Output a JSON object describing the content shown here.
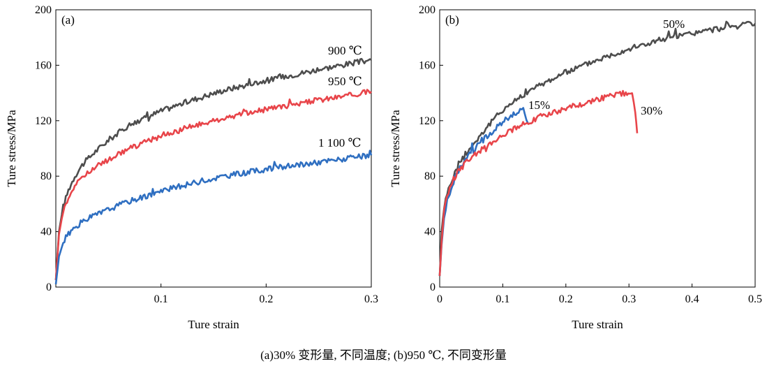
{
  "caption": "(a)30% 变形量, 不同温度; (b)950 ℃, 不同变形量",
  "chart_data": [
    {
      "panel_label": "(a)",
      "type": "line",
      "xlabel": "Ture strain",
      "ylabel": "Ture stress/MPa",
      "xlim": [
        0,
        0.3
      ],
      "ylim": [
        0,
        200
      ],
      "xticks": [
        0.1,
        0.2,
        0.3
      ],
      "xtick_labels": [
        "0.1",
        "0.2",
        "0.3"
      ],
      "yticks": [
        0,
        40,
        80,
        120,
        160,
        200
      ],
      "ytick_labels": [
        "0",
        "40",
        "80",
        "120",
        "160",
        "200"
      ],
      "series": [
        {
          "name": "900 ℃",
          "color": "#4d4d4d",
          "x": [
            0,
            0.003,
            0.007,
            0.012,
            0.018,
            0.025,
            0.035,
            0.05,
            0.07,
            0.1,
            0.13,
            0.16,
            0.2,
            0.25,
            0.3
          ],
          "y": [
            5,
            40,
            58,
            70,
            80,
            88,
            96,
            106,
            117,
            127,
            135,
            142,
            149,
            157,
            164
          ]
        },
        {
          "name": "950 ℃",
          "color": "#e8454a",
          "x": [
            0,
            0.003,
            0.007,
            0.012,
            0.018,
            0.025,
            0.035,
            0.05,
            0.07,
            0.1,
            0.13,
            0.16,
            0.2,
            0.25,
            0.3
          ],
          "y": [
            5,
            38,
            55,
            65,
            73,
            79,
            85,
            92,
            100,
            109,
            116,
            122,
            128,
            135,
            141
          ]
        },
        {
          "name": "1 100 ℃",
          "color": "#2f6fc1",
          "x": [
            0,
            0.003,
            0.007,
            0.012,
            0.018,
            0.025,
            0.035,
            0.05,
            0.07,
            0.1,
            0.13,
            0.16,
            0.2,
            0.25,
            0.3
          ],
          "y": [
            2,
            22,
            32,
            38,
            43,
            47,
            51,
            56,
            62,
            69,
            75,
            80,
            85,
            90,
            95
          ]
        }
      ]
    },
    {
      "panel_label": "(b)",
      "type": "line",
      "xlabel": "Ture strain",
      "ylabel": "Ture stress/MPa",
      "xlim": [
        0,
        0.5
      ],
      "ylim": [
        0,
        200
      ],
      "xticks": [
        0,
        0.1,
        0.2,
        0.3,
        0.4,
        0.5
      ],
      "xtick_labels": [
        "0",
        "0.1",
        "0.2",
        "0.3",
        "0.4",
        "0.5"
      ],
      "yticks": [
        0,
        40,
        80,
        120,
        160,
        200
      ],
      "ytick_labels": [
        "0",
        "40",
        "80",
        "120",
        "160",
        "200"
      ],
      "series": [
        {
          "name": "50%",
          "color": "#4d4d4d",
          "x": [
            0,
            0.003,
            0.007,
            0.012,
            0.02,
            0.03,
            0.045,
            0.06,
            0.08,
            0.1,
            0.13,
            0.16,
            0.2,
            0.25,
            0.3,
            0.35,
            0.4,
            0.45,
            0.5
          ],
          "y": [
            8,
            40,
            58,
            68,
            78,
            88,
            98,
            107,
            118,
            128,
            138,
            146,
            155,
            164,
            172,
            178,
            183,
            187,
            190
          ]
        },
        {
          "name": "15%",
          "color": "#2f6fc1",
          "x": [
            0,
            0.003,
            0.007,
            0.012,
            0.02,
            0.03,
            0.045,
            0.06,
            0.08,
            0.1,
            0.115,
            0.125,
            0.13,
            0.135,
            0.14
          ],
          "y": [
            8,
            30,
            50,
            62,
            74,
            84,
            94,
            102,
            111,
            119,
            124,
            127,
            128,
            125,
            118
          ]
        },
        {
          "name": "30%",
          "color": "#e8454a",
          "x": [
            0,
            0.003,
            0.007,
            0.012,
            0.02,
            0.03,
            0.045,
            0.06,
            0.08,
            0.1,
            0.13,
            0.16,
            0.2,
            0.24,
            0.27,
            0.295,
            0.305,
            0.31,
            0.313
          ],
          "y": [
            8,
            32,
            55,
            66,
            76,
            84,
            91,
            97,
            104,
            110,
            117,
            123,
            129,
            134,
            138,
            140,
            138,
            128,
            111
          ]
        }
      ]
    }
  ]
}
